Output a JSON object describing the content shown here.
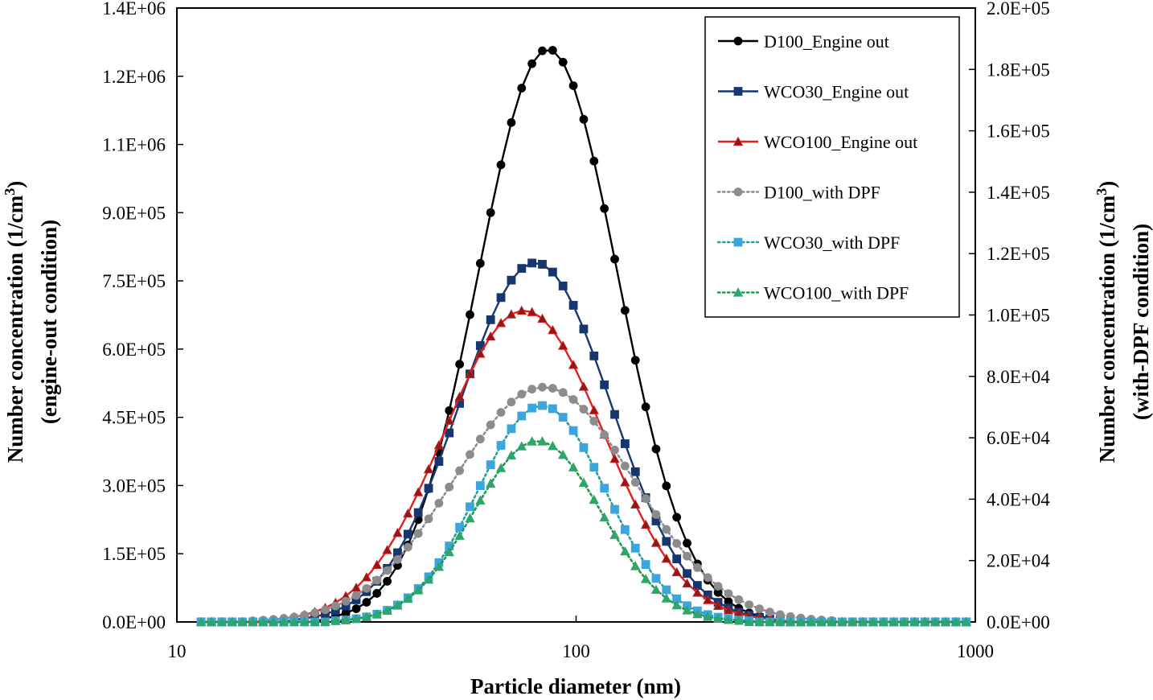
{
  "chart_data": {
    "type": "line",
    "title": "",
    "xlabel": "Particle diameter (nm)",
    "x_scale": "log",
    "xlim": [
      10,
      1000
    ],
    "x_ticks": [
      "10",
      "100",
      "1000"
    ],
    "ylabel_left_line1": "Number concentration (1/cm",
    "ylabel_left_sup": "3",
    "ylabel_left_close": ")",
    "ylabel_left_line2": "(engine-out condition)",
    "ylabel_right_line1": "Number concentration (1/cm",
    "ylabel_right_sup": "3",
    "ylabel_right_close": ")",
    "ylabel_right_line2": "(with-DPF condition)",
    "ylim_left": [
      0,
      1350000
    ],
    "ylim_right": [
      0,
      200000
    ],
    "y_ticks_left": [
      "0.0E+00",
      "1.5E+05",
      "3.0E+05",
      "4.5E+05",
      "6.0E+05",
      "7.5E+05",
      "9.0E+05",
      "1.1E+06",
      "1.2E+06",
      "1.4E+06"
    ],
    "y_ticks_right": [
      "0.0E+00",
      "2.0E+04",
      "4.0E+04",
      "6.0E+04",
      "8.0E+04",
      "1.0E+05",
      "1.2E+05",
      "1.4E+05",
      "1.6E+05",
      "1.8E+05",
      "2.0E+05"
    ],
    "legend_position": "top-right",
    "distribution": {
      "x_min_nm": 11.5,
      "x_step_log10": 0.0259,
      "points": 75,
      "min_value_fraction": 0.005
    },
    "series": [
      {
        "name": "D100_Engine out",
        "axis": "left",
        "peak": 1260000,
        "mode_nm": 85,
        "sigma_log10": 0.175,
        "style": "solid",
        "marker": "circle",
        "color": "#000000",
        "marker_fill": "#000000"
      },
      {
        "name": "WCO30_Engine out",
        "axis": "left",
        "peak": 790000,
        "mode_nm": 79,
        "sigma_log10": 0.19,
        "style": "solid",
        "marker": "square",
        "color": "#16366f",
        "marker_fill": "#16366f"
      },
      {
        "name": "WCO100_Engine out",
        "axis": "left",
        "peak": 685000,
        "mode_nm": 74,
        "sigma_log10": 0.2,
        "style": "solid",
        "marker": "triangle",
        "color": "#e0201c",
        "marker_fill": "#8c1a1a"
      },
      {
        "name": "D100_with DPF",
        "axis": "right",
        "peak": 76500,
        "mode_nm": 83,
        "sigma_log10": 0.225,
        "style": "dotted",
        "marker": "circle",
        "color": "#8c8c8c",
        "marker_fill": "#8c8c8c"
      },
      {
        "name": "WCO30_with DPF",
        "axis": "right",
        "peak": 70500,
        "mode_nm": 82,
        "sigma_log10": 0.16,
        "style": "dotted",
        "marker": "square",
        "color": "#27a09a",
        "marker_fill": "#3aa6dc"
      },
      {
        "name": "WCO100_with DPF",
        "axis": "right",
        "peak": 59000,
        "mode_nm": 80,
        "sigma_log10": 0.16,
        "style": "dotted",
        "marker": "triangle",
        "color": "#1f9a48",
        "marker_fill": "#2ea56a"
      }
    ]
  }
}
